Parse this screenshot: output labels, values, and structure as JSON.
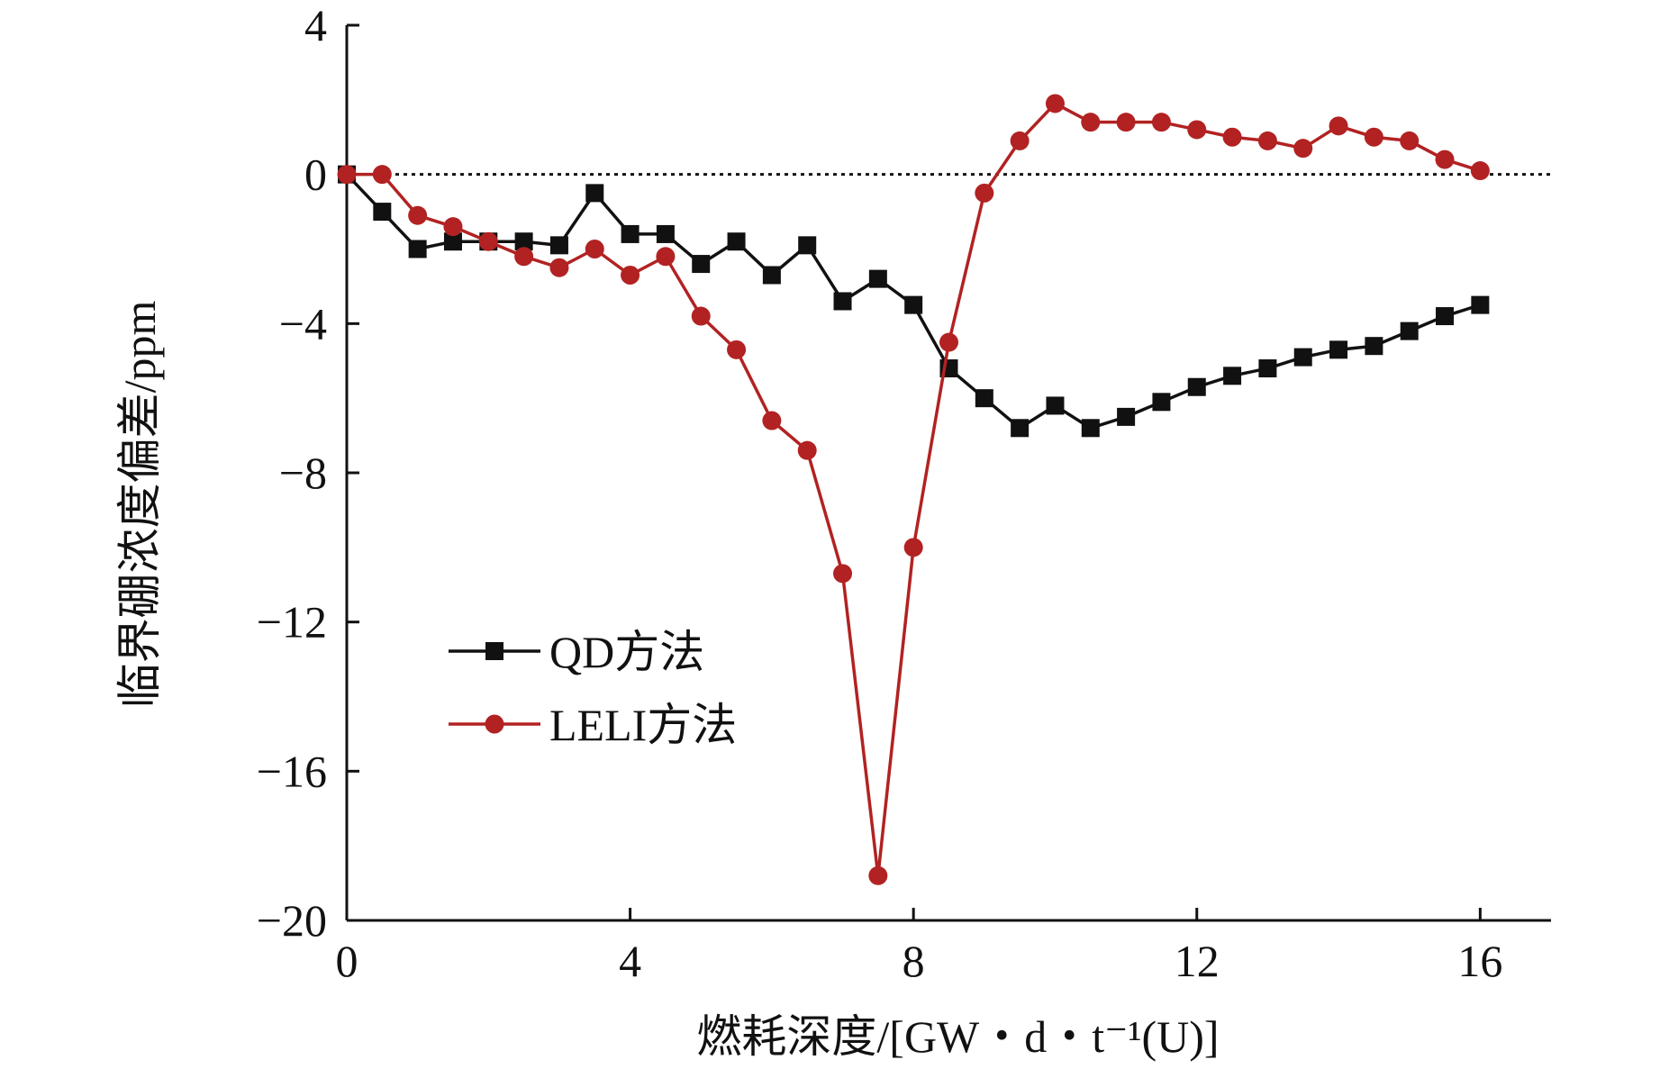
{
  "chart_data": {
    "type": "line",
    "xlabel": "燃耗深度/[GW・d・t⁻¹(U)]",
    "ylabel": "临界硼浓度偏差/ppm",
    "xlim": [
      0,
      17
    ],
    "ylim": [
      -20,
      4
    ],
    "xticks": [
      "0",
      "4",
      "8",
      "12",
      "16"
    ],
    "yticks": [
      "4",
      "0",
      "−4",
      "−8",
      "−12",
      "−16",
      "−20"
    ],
    "reference_line": 0,
    "legend_position": "center-left",
    "series": [
      {
        "name": "QD方法",
        "color": "#111111",
        "marker": "square",
        "x": [
          0,
          0.5,
          1,
          1.5,
          2,
          2.5,
          3,
          3.5,
          4,
          4.5,
          5,
          5.5,
          6,
          6.5,
          7,
          7.5,
          8,
          8.5,
          9,
          9.5,
          10,
          10.5,
          11,
          11.5,
          12,
          12.5,
          13,
          13.5,
          14,
          14.5,
          15,
          15.5,
          16
        ],
        "y": [
          0,
          -1.0,
          -2.0,
          -1.8,
          -1.8,
          -1.8,
          -1.9,
          -0.5,
          -1.6,
          -1.6,
          -2.4,
          -1.8,
          -2.7,
          -1.9,
          -3.4,
          -2.8,
          -3.5,
          -5.2,
          -6.0,
          -6.8,
          -6.2,
          -6.8,
          -6.5,
          -6.1,
          -5.7,
          -5.4,
          -5.2,
          -4.9,
          -4.7,
          -4.6,
          -4.2,
          -3.8,
          -3.5
        ]
      },
      {
        "name": "LELI方法",
        "color": "#b22222",
        "marker": "circle",
        "x": [
          0,
          0.5,
          1,
          1.5,
          2,
          2.5,
          3,
          3.5,
          4,
          4.5,
          5,
          5.5,
          6,
          6.5,
          7,
          7.5,
          8,
          8.5,
          9,
          9.5,
          10,
          10.5,
          11,
          11.5,
          12,
          12.5,
          13,
          13.5,
          14,
          14.5,
          15,
          15.5,
          16
        ],
        "y": [
          0,
          0,
          -1.1,
          -1.4,
          -1.8,
          -2.2,
          -2.5,
          -2.0,
          -2.7,
          -2.2,
          -3.8,
          -4.7,
          -6.6,
          -7.4,
          -10.7,
          -18.8,
          -10.0,
          -4.5,
          -0.5,
          0.9,
          1.9,
          1.4,
          1.4,
          1.4,
          1.2,
          1.0,
          0.9,
          0.7,
          1.3,
          1.0,
          0.9,
          0.4,
          0.1
        ]
      }
    ]
  }
}
